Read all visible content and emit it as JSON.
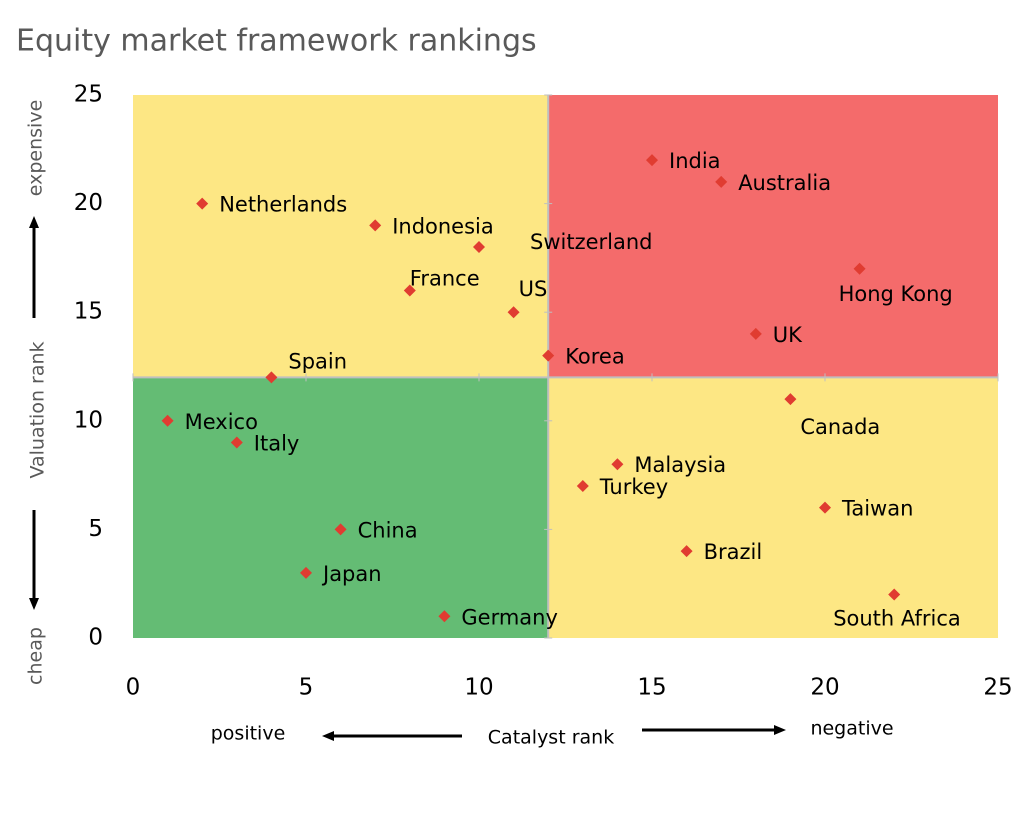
{
  "chart_data": {
    "type": "scatter",
    "title": "Equity market framework rankings",
    "x_label": "Catalyst rank",
    "x_low_label": "positive",
    "x_high_label": "negative",
    "y_label": "Valuation rank",
    "y_high_label": "expensive",
    "y_low_label": "cheap",
    "xlim": [
      0,
      25
    ],
    "ylim": [
      0,
      25
    ],
    "xticks": [
      0,
      5,
      10,
      15,
      20,
      25
    ],
    "yticks": [
      0,
      5,
      10,
      15,
      20,
      25
    ],
    "quadrants": {
      "x": 12,
      "y": 12,
      "colors": {
        "top_left": "#fde784",
        "top_right": "#f46b6b",
        "bottom_left": "#64bc74",
        "bottom_right": "#fde784"
      }
    },
    "color": "#e03c31",
    "labels": [
      "Netherlands",
      "Indonesia",
      "Switzerland",
      "France",
      "US",
      "Spain",
      "Korea",
      "India",
      "Australia",
      "Hong Kong",
      "UK",
      "Mexico",
      "Italy",
      "China",
      "Japan",
      "Germany",
      "Canada",
      "Malaysia",
      "Turkey",
      "Taiwan",
      "Brazil",
      "South Africa"
    ],
    "x": [
      2,
      7,
      10,
      8,
      11,
      4,
      12,
      15,
      17,
      21,
      18,
      1,
      3,
      6,
      5,
      9,
      19,
      14,
      13,
      20,
      16,
      22
    ],
    "y": [
      20,
      19,
      18,
      16,
      15,
      12,
      13,
      22,
      21,
      17,
      14,
      10,
      9,
      5,
      3,
      1,
      11,
      8,
      7,
      6,
      4,
      2
    ]
  }
}
